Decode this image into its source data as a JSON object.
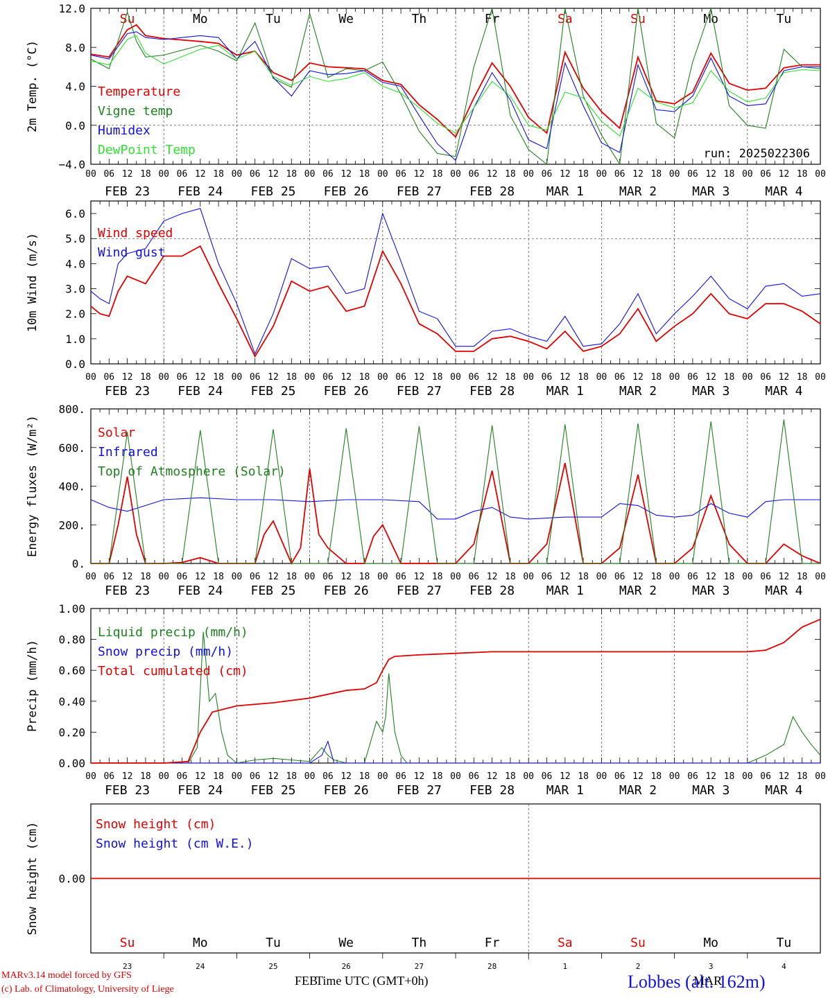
{
  "days": [
    "Su",
    "Mo",
    "Tu",
    "We",
    "Th",
    "Fr",
    "Sa",
    "Su",
    "Mo",
    "Tu"
  ],
  "day_colors": [
    "#e00000",
    "#000000",
    "#000000",
    "#000000",
    "#000000",
    "#000000",
    "#e00000",
    "#e00000",
    "#000000",
    "#000000"
  ],
  "date_labels": [
    "FEB 23",
    "FEB 24",
    "FEB 25",
    "FEB 26",
    "FEB 27",
    "FEB 28",
    "MAR  1",
    "MAR  2",
    "MAR  3",
    "MAR  4"
  ],
  "hour_labels": [
    "00",
    "06",
    "12",
    "18"
  ],
  "hour_label_end": "00",
  "snow_day_numbers": [
    "23",
    "24",
    "25",
    "26",
    "27",
    "28",
    "1",
    "2",
    "3",
    "4"
  ],
  "footer": {
    "model_line": "MARv3.14 model forced by GFS",
    "copyright_line": "(c) Lab. of Climatology, University of Liege",
    "xlabel": "Time UTC (GMT+0h)",
    "month_left": "FEB",
    "month_right": "MAR",
    "station": "Lobbes (alt. 162m)"
  },
  "colors": {
    "red": "#e00000",
    "green": "#208020",
    "blue": "#1010e0",
    "lightgreen": "#30e030",
    "grid": "#404040"
  },
  "chart_data": [
    {
      "type": "line",
      "ylabel": "2m Temp. (°C)",
      "yticks": [
        "12.0",
        "8.0",
        "4.0",
        "0.0",
        "−4.0"
      ],
      "ylim": [
        -4,
        12
      ],
      "run_label": "run: 2025022306",
      "x_unit": "hours since FEB 23 00 UTC",
      "series": [
        {
          "name": "Temperature",
          "color": "red",
          "x": [
            0,
            6,
            12,
            15,
            18,
            24,
            36,
            42,
            48,
            54,
            60,
            66,
            72,
            78,
            84,
            90,
            96,
            102,
            108,
            114,
            120,
            126,
            132,
            138,
            144,
            150,
            156,
            162,
            168,
            174,
            180,
            186,
            192,
            198,
            204,
            210,
            216,
            222,
            228,
            234,
            240
          ],
          "y": [
            7.3,
            7.0,
            9.8,
            10.3,
            9.2,
            8.9,
            8.6,
            8.4,
            7.2,
            7.6,
            5.4,
            4.6,
            6.4,
            6.0,
            5.9,
            5.8,
            4.6,
            4.2,
            2.1,
            0.6,
            -1.2,
            2.8,
            6.4,
            4.0,
            0.8,
            -0.8,
            7.5,
            3.8,
            1.4,
            -0.3,
            7.0,
            2.5,
            2.2,
            3.4,
            7.4,
            4.3,
            3.6,
            3.8,
            5.9,
            6.2,
            6.2
          ]
        },
        {
          "name": "Vigne temp",
          "color": "green",
          "x": [
            0,
            6,
            12,
            15,
            18,
            24,
            36,
            42,
            48,
            54,
            60,
            66,
            72,
            78,
            84,
            90,
            96,
            102,
            108,
            114,
            120,
            126,
            132,
            138,
            144,
            150,
            156,
            162,
            168,
            174,
            180,
            186,
            192,
            198,
            204,
            210,
            216,
            222,
            228,
            234,
            240
          ],
          "y": [
            6.8,
            5.8,
            11.6,
            8.6,
            7.0,
            7.2,
            8.2,
            7.6,
            6.6,
            10.5,
            4.8,
            3.9,
            11.5,
            4.9,
            5.8,
            5.6,
            6.5,
            3.2,
            -0.6,
            -2.9,
            -3.2,
            6.0,
            12.0,
            1.0,
            -2.5,
            -4.5,
            12.0,
            3.0,
            -1.0,
            -4.2,
            12.0,
            0.2,
            -1.3,
            6.5,
            12.0,
            2.0,
            0.0,
            -0.3,
            7.8,
            6.0,
            5.8
          ]
        },
        {
          "name": "Humidex",
          "color": "blue",
          "x": [
            0,
            6,
            12,
            15,
            18,
            24,
            36,
            42,
            48,
            54,
            60,
            66,
            72,
            78,
            84,
            90,
            96,
            102,
            108,
            114,
            120,
            126,
            132,
            138,
            144,
            150,
            156,
            162,
            168,
            174,
            180,
            186,
            192,
            198,
            204,
            210,
            216,
            222,
            228,
            234,
            240
          ],
          "y": [
            7.2,
            6.8,
            9.4,
            9.6,
            9.0,
            8.8,
            9.2,
            9.0,
            6.8,
            8.6,
            4.9,
            3.0,
            5.6,
            5.2,
            5.3,
            5.6,
            4.4,
            4.0,
            1.0,
            -1.9,
            -3.6,
            1.8,
            5.4,
            2.6,
            -1.5,
            -2.4,
            6.4,
            2.0,
            -1.8,
            -2.8,
            6.2,
            1.6,
            1.4,
            3.0,
            6.9,
            3.0,
            2.0,
            2.2,
            5.6,
            6.0,
            6.0
          ]
        },
        {
          "name": "DewPoint Temp",
          "color": "lightgreen",
          "x": [
            0,
            6,
            12,
            15,
            18,
            24,
            36,
            42,
            48,
            54,
            60,
            66,
            72,
            78,
            84,
            90,
            96,
            102,
            108,
            114,
            120,
            126,
            132,
            138,
            144,
            150,
            156,
            162,
            168,
            174,
            180,
            186,
            192,
            198,
            204,
            210,
            216,
            222,
            228,
            234,
            240
          ],
          "y": [
            6.6,
            6.2,
            8.8,
            9.2,
            7.4,
            6.3,
            7.8,
            8.2,
            6.8,
            7.6,
            5.0,
            4.1,
            5.0,
            4.5,
            4.8,
            5.4,
            4.0,
            3.3,
            1.8,
            0.2,
            -0.8,
            1.8,
            4.5,
            3.0,
            0.0,
            -0.5,
            3.4,
            2.8,
            0.4,
            -1.1,
            3.8,
            2.4,
            1.8,
            2.3,
            5.6,
            3.5,
            2.4,
            2.8,
            5.4,
            5.7,
            5.6
          ]
        }
      ]
    },
    {
      "type": "line",
      "ylabel": "10m Wind (m/s)",
      "yticks": [
        "6.0",
        "5.0",
        "4.0",
        "3.0",
        "2.0",
        "1.0",
        "0.0"
      ],
      "ylim": [
        0,
        6.5
      ],
      "series": [
        {
          "name": "Wind speed",
          "color": "red",
          "x": [
            0,
            3,
            6,
            9,
            12,
            18,
            24,
            30,
            36,
            42,
            48,
            54,
            60,
            66,
            72,
            78,
            84,
            90,
            96,
            102,
            108,
            114,
            120,
            126,
            132,
            138,
            144,
            150,
            156,
            162,
            168,
            174,
            180,
            186,
            192,
            198,
            204,
            210,
            216,
            222,
            228,
            234,
            240
          ],
          "y": [
            2.3,
            2.0,
            1.9,
            2.9,
            3.5,
            3.2,
            4.3,
            4.3,
            4.7,
            3.2,
            1.8,
            0.3,
            1.5,
            3.3,
            2.9,
            3.1,
            2.1,
            2.3,
            4.5,
            3.2,
            1.6,
            1.2,
            0.5,
            0.5,
            1.0,
            1.1,
            0.9,
            0.6,
            1.3,
            0.5,
            0.7,
            1.2,
            2.2,
            0.9,
            1.5,
            2.0,
            2.8,
            2.0,
            1.8,
            2.4,
            2.4,
            2.1,
            1.6
          ]
        },
        {
          "name": "Wind gust",
          "color": "blue",
          "x": [
            0,
            3,
            6,
            9,
            12,
            18,
            24,
            30,
            36,
            42,
            48,
            54,
            60,
            66,
            72,
            78,
            84,
            90,
            96,
            102,
            108,
            114,
            120,
            126,
            132,
            138,
            144,
            150,
            156,
            162,
            168,
            174,
            180,
            186,
            192,
            198,
            204,
            210,
            216,
            222,
            228,
            234,
            240
          ],
          "y": [
            2.9,
            2.6,
            2.4,
            4.0,
            4.4,
            4.6,
            5.7,
            6.0,
            6.2,
            4.0,
            2.4,
            0.4,
            2.0,
            4.2,
            3.8,
            3.9,
            2.8,
            3.0,
            6.0,
            4.1,
            2.1,
            1.8,
            0.7,
            0.7,
            1.3,
            1.4,
            1.1,
            0.9,
            1.9,
            0.7,
            0.8,
            1.6,
            2.8,
            1.2,
            2.0,
            2.7,
            3.5,
            2.6,
            2.2,
            3.1,
            3.2,
            2.7,
            2.8
          ]
        }
      ]
    },
    {
      "type": "line",
      "ylabel": "Energy fluxes (W/m²)",
      "yticks": [
        "800.",
        "600.",
        "400.",
        "200.",
        "0."
      ],
      "ylim": [
        0,
        800
      ],
      "series": [
        {
          "name": "Solar",
          "color": "red",
          "x": [
            0,
            6,
            9,
            12,
            15,
            18,
            24,
            30,
            36,
            42,
            48,
            54,
            57,
            60,
            66,
            69,
            72,
            75,
            78,
            84,
            90,
            93,
            96,
            102,
            108,
            114,
            120,
            126,
            132,
            138,
            144,
            150,
            156,
            162,
            168,
            174,
            180,
            186,
            192,
            198,
            204,
            210,
            216,
            222,
            228,
            234,
            240
          ],
          "y": [
            0,
            0,
            200,
            450,
            150,
            0,
            0,
            5,
            30,
            0,
            0,
            0,
            150,
            220,
            0,
            80,
            490,
            150,
            80,
            0,
            0,
            140,
            200,
            0,
            0,
            0,
            0,
            100,
            480,
            0,
            0,
            100,
            520,
            0,
            0,
            80,
            460,
            0,
            0,
            80,
            350,
            100,
            0,
            0,
            100,
            40,
            0
          ]
        },
        {
          "name": "Infrared",
          "color": "blue",
          "x": [
            0,
            6,
            12,
            18,
            24,
            36,
            48,
            60,
            72,
            84,
            96,
            108,
            114,
            120,
            126,
            132,
            138,
            144,
            156,
            168,
            174,
            180,
            186,
            192,
            198,
            204,
            210,
            216,
            222,
            228,
            234,
            240
          ],
          "y": [
            330,
            290,
            270,
            300,
            330,
            340,
            330,
            330,
            320,
            330,
            330,
            320,
            230,
            230,
            270,
            290,
            240,
            230,
            240,
            240,
            310,
            300,
            250,
            240,
            250,
            310,
            260,
            240,
            320,
            330,
            330,
            330
          ]
        },
        {
          "name": "Top of Atmosphere (Solar)",
          "color": "green",
          "x": [
            0,
            6,
            12,
            18,
            24,
            30,
            36,
            42,
            48,
            54,
            60,
            66,
            72,
            78,
            84,
            90,
            96,
            102,
            108,
            114,
            120,
            126,
            132,
            138,
            144,
            150,
            156,
            162,
            168,
            174,
            180,
            186,
            192,
            198,
            204,
            210,
            216,
            222,
            228,
            234,
            240
          ],
          "y": [
            0,
            0,
            680,
            0,
            0,
            0,
            690,
            0,
            0,
            0,
            695,
            0,
            0,
            0,
            700,
            0,
            0,
            0,
            710,
            0,
            0,
            0,
            715,
            0,
            0,
            0,
            720,
            0,
            0,
            0,
            725,
            0,
            0,
            0,
            735,
            0,
            0,
            0,
            745,
            0,
            0
          ]
        }
      ]
    },
    {
      "type": "line",
      "ylabel": "Precip (mm/h)",
      "yticks": [
        "1.00",
        "0.80",
        "0.60",
        "0.40",
        "0.20",
        "0.00"
      ],
      "ylim": [
        0,
        1.0
      ],
      "series": [
        {
          "name": "Liquid precip (mm/h)",
          "color": "green",
          "x": [
            0,
            12,
            24,
            32,
            35,
            37,
            39,
            41,
            43,
            45,
            48,
            54,
            60,
            66,
            72,
            76,
            78,
            80,
            84,
            90,
            94,
            96,
            97,
            98,
            100,
            102,
            104,
            108,
            120,
            216,
            222,
            228,
            231,
            234,
            237,
            240
          ],
          "y": [
            0,
            0,
            0,
            0,
            0.1,
            0.85,
            0.4,
            0.45,
            0.2,
            0.05,
            0.0,
            0.02,
            0.03,
            0.02,
            0.01,
            0.1,
            0.05,
            0.02,
            0.0,
            0.0,
            0.27,
            0.2,
            0.3,
            0.58,
            0.2,
            0.05,
            0.0,
            0.0,
            0.0,
            0.0,
            0.05,
            0.12,
            0.3,
            0.2,
            0.12,
            0.05
          ]
        },
        {
          "name": "Snow precip (mm/h)",
          "color": "blue",
          "x": [
            0,
            72,
            76,
            78,
            80,
            84,
            240
          ],
          "y": [
            0,
            0,
            0.05,
            0.14,
            0.0,
            0.0,
            0
          ]
        },
        {
          "name": "Total cumulated (cm)",
          "color": "red",
          "x": [
            0,
            24,
            32,
            36,
            40,
            48,
            60,
            72,
            84,
            90,
            94,
            96,
            98,
            100,
            108,
            120,
            132,
            144,
            168,
            192,
            216,
            222,
            228,
            234,
            240
          ],
          "y": [
            0.0,
            0.0,
            0.01,
            0.2,
            0.33,
            0.37,
            0.39,
            0.42,
            0.47,
            0.48,
            0.52,
            0.6,
            0.67,
            0.69,
            0.7,
            0.71,
            0.72,
            0.72,
            0.72,
            0.72,
            0.72,
            0.73,
            0.78,
            0.88,
            0.93
          ]
        }
      ]
    },
    {
      "type": "line",
      "ylabel": "Snow height (cm)",
      "yticks": [
        "0.00"
      ],
      "ylim": [
        -1,
        1
      ],
      "series": [
        {
          "name": "Snow height (cm)",
          "color": "red",
          "x": [
            0,
            240
          ],
          "y": [
            0,
            0
          ]
        },
        {
          "name": "Snow height (cm W.E.)",
          "color": "blue",
          "x": [],
          "y": []
        }
      ]
    }
  ]
}
